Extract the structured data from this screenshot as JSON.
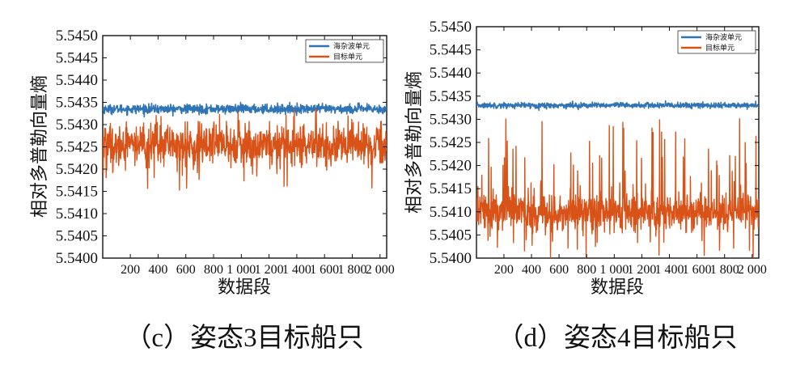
{
  "chart_data": [
    {
      "type": "line",
      "caption": "（c）姿态3目标船只",
      "xlabel": "数据段",
      "ylabel": "相对多普勒向量熵",
      "xlim": [
        1,
        2048
      ],
      "ylim": [
        5.54,
        5.545
      ],
      "xticks": [
        "200",
        "400",
        "600",
        "800",
        "1 000",
        "1 200",
        "1 400",
        "1 600",
        "1 800",
        "2 000"
      ],
      "yticks": [
        "5.5400",
        "5.5405",
        "5.5410",
        "5.5415",
        "5.5420",
        "5.5425",
        "5.5430",
        "5.5435",
        "5.5440",
        "5.5445",
        "5.5450"
      ],
      "legend_position": "top-right",
      "grid": false,
      "series": [
        {
          "name": "海杂波单元",
          "color": "#2f75b5",
          "mean": 5.54335,
          "noise": 0.0001,
          "spike_prob": 0,
          "spike_min": 0,
          "spike_max": 0
        },
        {
          "name": "目标单元",
          "color": "#d95319",
          "mean": 5.54255,
          "noise": 0.00045,
          "spike_prob": 0.04,
          "spike_min": 5.5414,
          "spike_max": 5.5434
        }
      ]
    },
    {
      "type": "line",
      "caption": "（d）姿态4目标船只",
      "xlabel": "数据段",
      "ylabel": "相对多普勒向量熵",
      "xlim": [
        1,
        2048
      ],
      "ylim": [
        5.54,
        5.545
      ],
      "xticks": [
        "200",
        "400",
        "600",
        "800",
        "1 000",
        "1 200",
        "1 400",
        "1 600",
        "1 800",
        "2 000"
      ],
      "yticks": [
        "5.5400",
        "5.5405",
        "5.5410",
        "5.5415",
        "5.5420",
        "5.5425",
        "5.5430",
        "5.5435",
        "5.5440",
        "5.5445",
        "5.5450"
      ],
      "legend_position": "top-right",
      "grid": false,
      "series": [
        {
          "name": "海杂波单元",
          "color": "#2f75b5",
          "mean": 5.5433,
          "noise": 6e-05,
          "spike_prob": 0,
          "spike_min": 0,
          "spike_max": 0
        },
        {
          "name": "目标单元",
          "color": "#d95319",
          "mean": 5.541,
          "noise": 0.0004,
          "spike_prob": 0.1,
          "spike_min": 5.54,
          "spike_max": 5.5431
        }
      ]
    }
  ]
}
